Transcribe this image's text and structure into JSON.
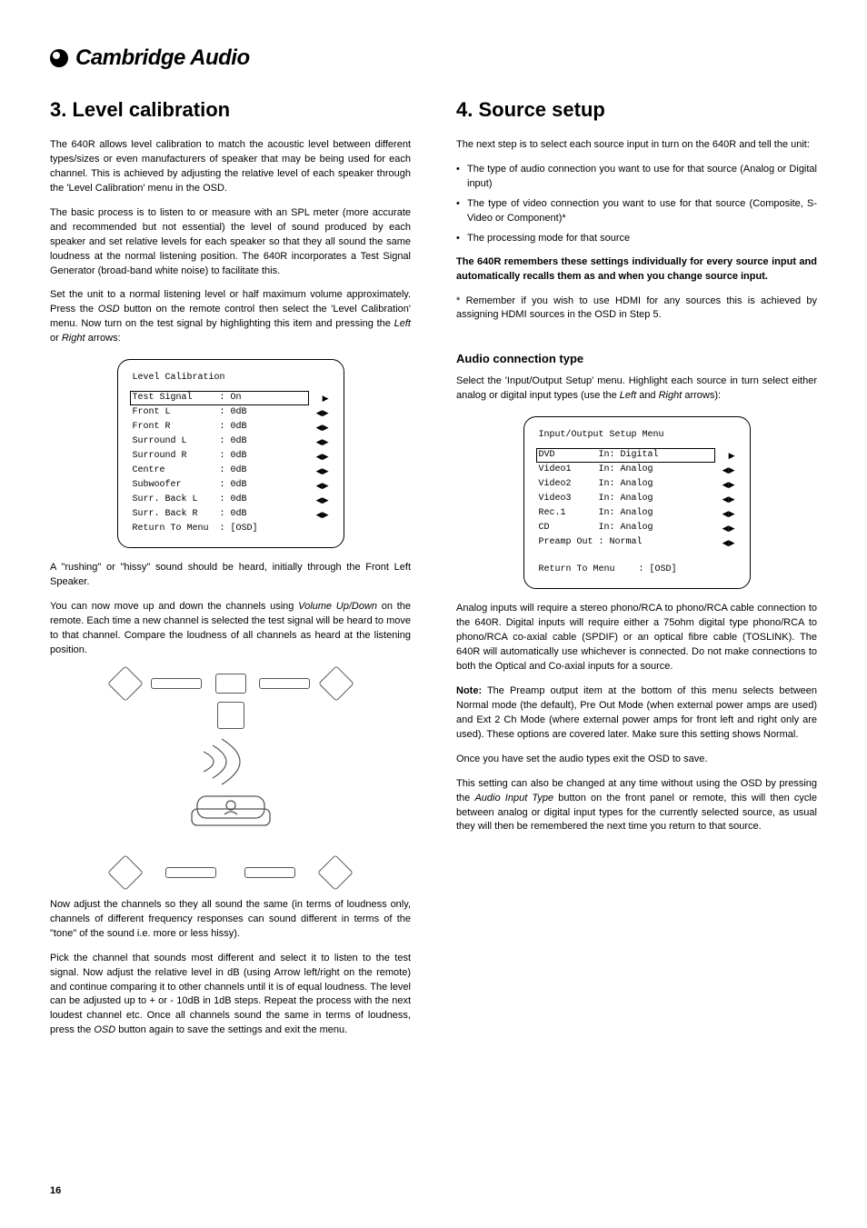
{
  "logo_text": "Cambridge Audio",
  "left": {
    "heading": "3. Level calibration",
    "p1": "The 640R allows level calibration to match the acoustic level between different types/sizes or even manufacturers of speaker that may be being used for each channel. This is achieved by adjusting the relative level of each speaker through the 'Level Calibration' menu in the OSD.",
    "p2": "The basic process is to listen to or measure with an SPL meter (more accurate and recommended but not essential) the level of sound produced by each speaker and set relative levels for each speaker so that they all sound the same loudness at the normal listening position. The 640R incorporates a Test Signal Generator (broad-band white noise) to facilitate this.",
    "p3a": "Set the unit to a normal listening level or half maximum volume approximately. Press the ",
    "p3b": "OSD",
    "p3c": " button on the remote control then select the 'Level Calibration' menu. Now turn on the test signal by highlighting this item and pressing the ",
    "p3d": "Left",
    "p3e": " or ",
    "p3f": "Right",
    "p3g": " arrows:",
    "osd1": {
      "title": "Level Calibration",
      "rows": [
        {
          "label": "Test Signal",
          "val": "On",
          "arrow": "▶",
          "hl": true
        },
        {
          "label": "Front L",
          "val": "0dB",
          "arrow": "◀▶",
          "hl": false
        },
        {
          "label": "Front R",
          "val": "0dB",
          "arrow": "◀▶",
          "hl": false
        },
        {
          "label": "Surround L",
          "val": "0dB",
          "arrow": "◀▶",
          "hl": false
        },
        {
          "label": "Surround R",
          "val": "0dB",
          "arrow": "◀▶",
          "hl": false
        },
        {
          "label": "Centre",
          "val": "0dB",
          "arrow": "◀▶",
          "hl": false
        },
        {
          "label": "Subwoofer",
          "val": "0dB",
          "arrow": "◀▶",
          "hl": false
        },
        {
          "label": "Surr. Back L",
          "val": "0dB",
          "arrow": "◀▶",
          "hl": false
        },
        {
          "label": "Surr. Back R",
          "val": "0dB",
          "arrow": "◀▶",
          "hl": false
        },
        {
          "label": "Return To Menu",
          "val": "[OSD]",
          "arrow": "",
          "hl": false
        }
      ]
    },
    "p4": "A \"rushing\" or \"hissy\" sound should be heard, initially through the Front Left Speaker.",
    "p5a": "You can now move up and down the channels using ",
    "p5b": "Volume Up/Down",
    "p5c": " on the remote. Each time a new channel is selected the test signal will be heard to move to that channel. Compare the loudness of all channels as heard at the listening position.",
    "p6": "Now adjust the channels so they all sound the same (in terms of loudness only, channels of different frequency responses can sound different in terms of the \"tone\" of the sound i.e. more or less hissy).",
    "p7a": "Pick the channel that sounds most different and select it to listen to the test signal. Now adjust the relative level in dB (using Arrow left/right on the remote) and continue comparing it to other channels until it is of equal loudness. The level can be adjusted up to + or - 10dB in 1dB steps. Repeat the process with the next loudest channel etc. Once all channels sound the same in terms of loudness, press the ",
    "p7b": "OSD",
    "p7c": " button again to save the settings and exit the menu."
  },
  "right": {
    "heading": "4. Source setup",
    "p1": "The next step is to select each source input in turn on the 640R and tell the unit:",
    "bullets": [
      "The  type of audio connection you want to use for that source (Analog or Digital input)",
      "The type of video connection you want to use for that source (Composite, S-Video or Component)*",
      "The processing mode for that source"
    ],
    "p2": "The 640R remembers these settings individually for every source input and automatically recalls them as and when you change source input.",
    "p3": "* Remember if you wish to use HDMI for any sources this is achieved by assigning HDMI sources in the OSD in Step 5.",
    "sub1": "Audio connection type",
    "p4a": "Select the 'Input/Output Setup' menu. Highlight each source in turn select either analog or digital input types (use the ",
    "p4b": "Left",
    "p4c": " and ",
    "p4d": "Right",
    "p4e": " arrows):",
    "osd2": {
      "title": "Input/Output Setup Menu",
      "rows": [
        {
          "label": "DVD",
          "val": "In: Digital",
          "arrow": "▶",
          "hl": true
        },
        {
          "label": "Video1",
          "val": "In: Analog",
          "arrow": "◀▶",
          "hl": false
        },
        {
          "label": "Video2",
          "val": "In: Analog",
          "arrow": "◀▶",
          "hl": false
        },
        {
          "label": "Video3",
          "val": "In: Analog",
          "arrow": "◀▶",
          "hl": false
        },
        {
          "label": "Rec.1",
          "val": "In: Analog",
          "arrow": "◀▶",
          "hl": false
        },
        {
          "label": "CD",
          "val": "In: Analog",
          "arrow": "◀▶",
          "hl": false
        },
        {
          "label": "Preamp Out",
          "val": ": Normal",
          "arrow": "◀▶",
          "hl": false
        }
      ],
      "return": {
        "label": "Return To Menu",
        "val": ": [OSD]"
      }
    },
    "p5": "Analog inputs will require a stereo phono/RCA to phono/RCA cable connection to the 640R. Digital inputs will require either a 75ohm digital type phono/RCA to phono/RCA co-axial cable (SPDIF) or an optical fibre cable (TOSLINK). The 640R will automatically use whichever is connected. Do not make connections to both the Optical and Co-axial inputs for a source.",
    "p6a": "Note:",
    "p6b": " The Preamp output item at the bottom of this menu selects between Normal mode (the default), Pre Out Mode (when external power amps are used) and Ext 2 Ch Mode (where external power amps for front left and right only are used). These options are covered later. Make sure this setting shows Normal.",
    "p7": "Once you have set the audio types exit the OSD to save.",
    "p8a": "This setting can also be changed at any time without using the OSD by pressing the ",
    "p8b": "Audio Input Type",
    "p8c": " button on the front panel or remote, this will then cycle between analog or digital input types for the currently selected source, as usual they will then be remembered the next time you return to that source."
  },
  "page_number": "16"
}
